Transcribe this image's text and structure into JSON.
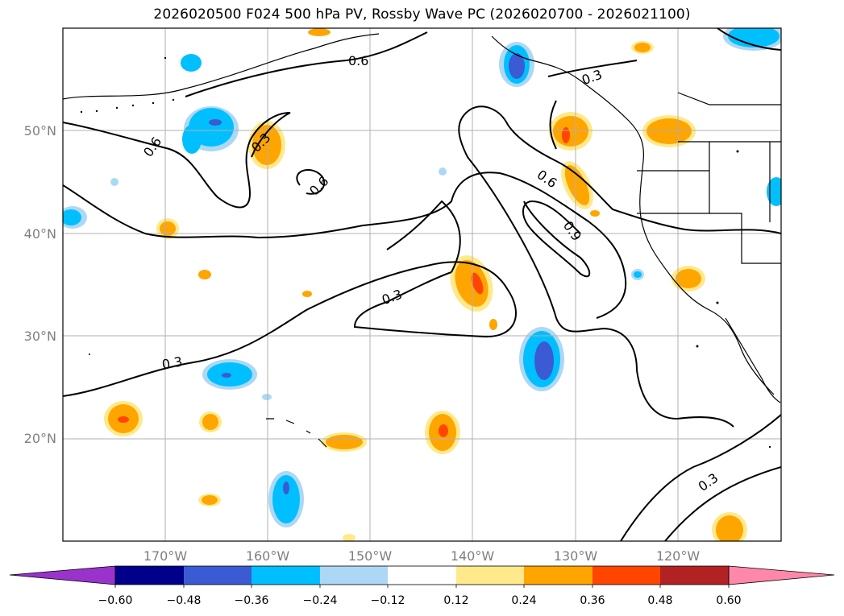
{
  "title": "2026020500 F024 500 hPa PV, Rossby Wave PC (2026020700 - 2026021100)",
  "map": {
    "lat_ticks": [
      "50°N",
      "40°N",
      "30°N",
      "20°N"
    ],
    "lon_ticks": [
      "170°W",
      "160°W",
      "150°W",
      "140°W",
      "130°W",
      "120°W"
    ],
    "contour_labels": [
      "0.6",
      "0.6",
      "0.3",
      "0.6",
      "0.3",
      "0.6",
      "0.9",
      "0.3",
      "0.3",
      "0.3"
    ]
  },
  "colorbar": {
    "tick_labels": [
      "−0.60",
      "−0.48",
      "−0.36",
      "−0.24",
      "−0.12",
      "0.12",
      "0.24",
      "0.36",
      "0.48",
      "0.60"
    ],
    "colors": [
      "#9933cc",
      "#00008b",
      "#3a5bd4",
      "#00bfff",
      "#add8f5",
      "#ffffff",
      "#ffe98a",
      "#ffa500",
      "#ff4500",
      "#b22222",
      "#ff88aa"
    ]
  },
  "colors": {
    "pos1": "#ffe98a",
    "pos2": "#ffa500",
    "pos3": "#ff4500",
    "neg1": "#add8f5",
    "neg2": "#00bfff",
    "neg3": "#3a5bd4",
    "grid": "#b0b0b0"
  }
}
